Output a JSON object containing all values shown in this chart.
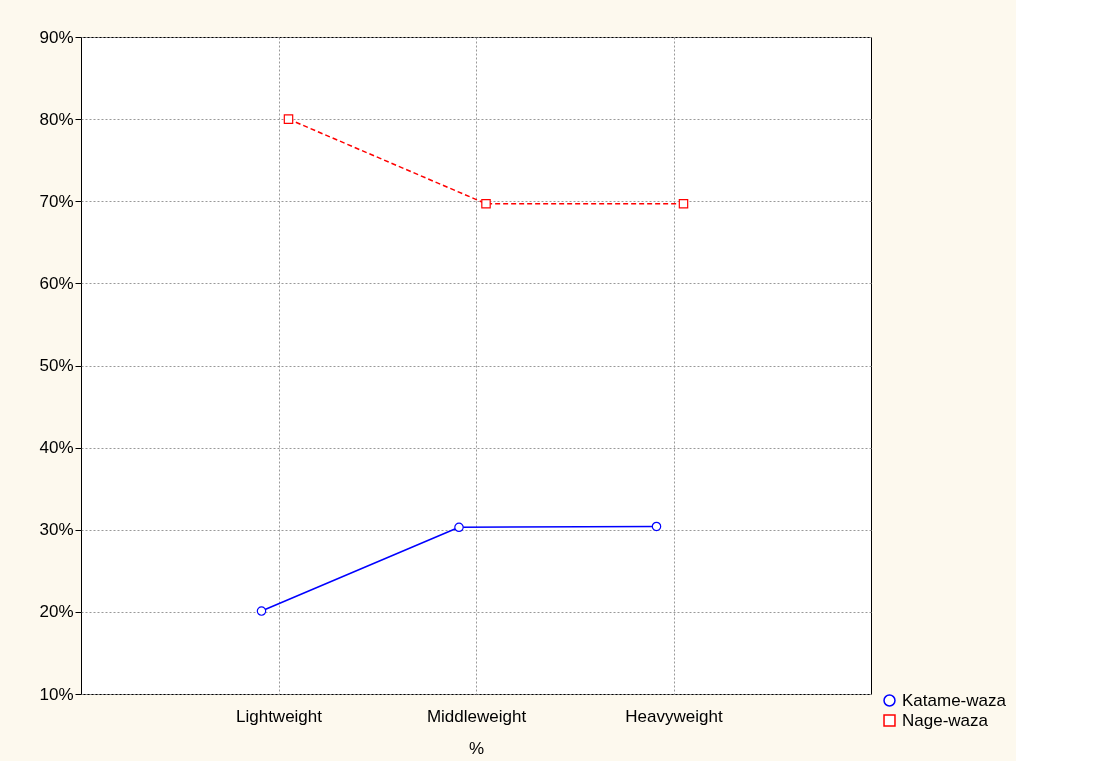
{
  "chart_data": {
    "type": "line",
    "xlabel": "%",
    "categories": [
      "Lightweight",
      "Middleweight",
      "Heavyweight"
    ],
    "series": [
      {
        "name": "Katame-waza",
        "color": "#0000ff",
        "values": [
          20.1,
          30.3,
          30.4
        ],
        "marker": "circle",
        "line_style": "solid"
      },
      {
        "name": "Nage-waza",
        "color": "#ff0000",
        "values": [
          80.0,
          69.7,
          69.7
        ],
        "marker": "square",
        "line_style": "dashed"
      }
    ],
    "ylim": [
      10,
      90
    ],
    "yticks": [
      {
        "value": 10,
        "label": "10%"
      },
      {
        "value": 20,
        "label": "20%"
      },
      {
        "value": 30,
        "label": "30%"
      },
      {
        "value": 40,
        "label": "40%"
      },
      {
        "value": 50,
        "label": "50%"
      },
      {
        "value": 60,
        "label": "60%"
      },
      {
        "value": 70,
        "label": "70%"
      },
      {
        "value": 80,
        "label": "80%"
      },
      {
        "value": 90,
        "label": "90%"
      }
    ],
    "grid": true,
    "legend": "bottom right"
  }
}
